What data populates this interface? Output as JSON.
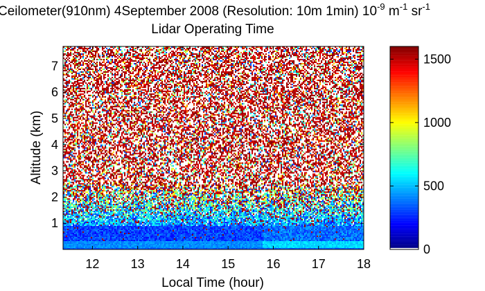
{
  "chart_data": {
    "type": "heatmap",
    "title_parts": {
      "main": "Ceilometer(910nm) 4September 2008 (Resolution: 10m 1min) 10",
      "exp1": "-9",
      "mid": " m",
      "exp2": "-1",
      "mid2": " sr",
      "exp3": "-1"
    },
    "subtitle": "Lidar Operating Time",
    "xlabel": "Local Time (hour)",
    "ylabel": "Altitude (km)",
    "xlim": [
      11.35,
      18.0
    ],
    "ylim": [
      0.0,
      7.75
    ],
    "xticks": [
      12,
      13,
      14,
      15,
      16,
      17,
      18
    ],
    "yticks": [
      1,
      2,
      3,
      4,
      5,
      6,
      7
    ],
    "colorbar": {
      "range": [
        0,
        1600
      ],
      "ticks": [
        0,
        500,
        1000,
        1500
      ],
      "colormap": "jet"
    },
    "description_profile": {
      "near_surface_band_top_km": 0.3,
      "near_surface_value": 420,
      "boundary_layer_top_km": 0.9,
      "boundary_layer_value": 300,
      "noise_dominated_above_km": 2.5,
      "enhanced_surface_start_hour": 15.75
    },
    "grid": false
  }
}
